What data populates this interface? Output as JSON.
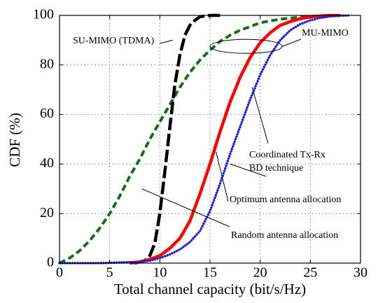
{
  "chart_data": {
    "type": "line",
    "xlabel": "Total channel capacity (bit/s/Hz)",
    "ylabel": "CDF (%)",
    "xlim": [
      0,
      30
    ],
    "ylim": [
      0,
      100
    ],
    "x_ticks": [
      "0",
      "5",
      "10",
      "15",
      "20",
      "25",
      "30"
    ],
    "y_ticks": [
      "0",
      "20",
      "40",
      "60",
      "80",
      "100"
    ],
    "grid": true,
    "legend": "none",
    "series": [
      {
        "key": "su_mimo",
        "color": "#000000",
        "style": "long-dash",
        "x": [
          7.5,
          8.5,
          9.0,
          9.5,
          10.0,
          10.5,
          11.0,
          11.5,
          12.0,
          12.5,
          13.0,
          13.5,
          14.0,
          15.0,
          16.0
        ],
        "y": [
          0,
          1,
          3,
          8,
          20,
          37,
          55,
          72,
          84,
          92,
          96,
          98,
          99.5,
          100,
          100
        ]
      },
      {
        "key": "random",
        "color": "#1a6b1a",
        "style": "dash",
        "x": [
          0,
          1,
          2,
          3,
          4,
          5,
          6,
          7,
          8,
          9,
          10,
          11,
          12,
          13,
          14,
          15,
          16,
          17,
          18,
          19,
          20,
          22,
          24,
          26,
          28
        ],
        "y": [
          0,
          2,
          5,
          9,
          14,
          20,
          27,
          35,
          42,
          50,
          57,
          64,
          71,
          77,
          82,
          86,
          89.5,
          92,
          94,
          95.5,
          97,
          98.5,
          99.3,
          99.8,
          100
        ]
      },
      {
        "key": "optimum",
        "color": "#ff0000",
        "style": "solid",
        "x": [
          7,
          8,
          9,
          10,
          11,
          12,
          13,
          14,
          15,
          16,
          17,
          18,
          19,
          20,
          21,
          22,
          23,
          24,
          25,
          26,
          27,
          28
        ],
        "y": [
          0,
          0.5,
          1.5,
          3,
          6,
          10,
          17,
          28,
          40,
          53,
          65,
          75,
          83,
          89,
          93,
          96,
          97.5,
          98.7,
          99.4,
          99.8,
          100,
          100
        ]
      },
      {
        "key": "coordinated",
        "color": "#1f1fd0",
        "style": "dotted",
        "x": [
          0,
          4,
          8,
          9,
          10,
          11,
          12,
          13,
          14,
          15,
          16,
          17,
          18,
          19,
          20,
          21,
          22,
          23,
          24,
          25,
          26,
          27,
          28,
          29
        ],
        "y": [
          0,
          0,
          0.5,
          1,
          2,
          3.5,
          5.5,
          8.5,
          13,
          21,
          32,
          44,
          55,
          66,
          76,
          84,
          90,
          94,
          96.5,
          98,
          99,
          99.6,
          99.9,
          100
        ]
      }
    ],
    "annotations": [
      {
        "key": "su",
        "text": "SU-MIMO (TDMA)"
      },
      {
        "key": "mu",
        "text": "MU-MIMO"
      },
      {
        "key": "coord1",
        "text": "Coordinated Tx-Rx"
      },
      {
        "key": "coord2",
        "text": "BD technique"
      },
      {
        "key": "optimum",
        "text": "Optimum antenna allocation"
      },
      {
        "key": "random",
        "text": "Random antenna allocation"
      }
    ]
  }
}
